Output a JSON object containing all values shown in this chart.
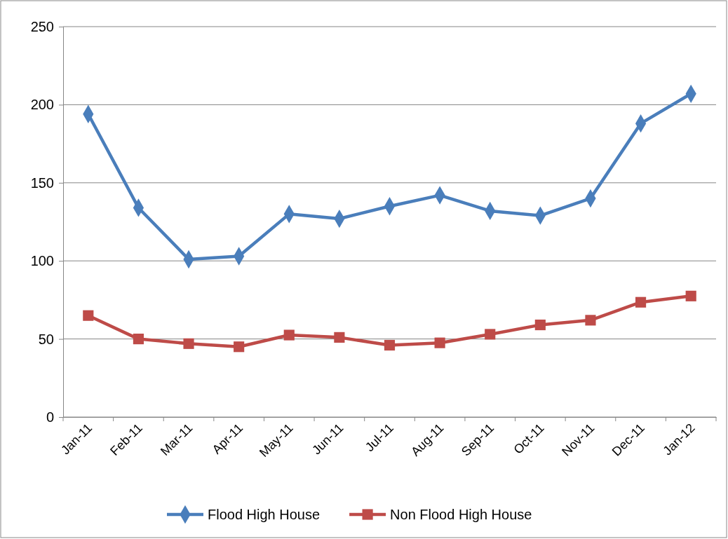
{
  "chart_data": {
    "type": "line",
    "categories": [
      "Jan-11",
      "Feb-11",
      "Mar-11",
      "Apr-11",
      "May-11",
      "Jun-11",
      "Jul-11",
      "Aug-11",
      "Sep-11",
      "Oct-11",
      "Nov-11",
      "Dec-11",
      "Jan-12"
    ],
    "ylim": [
      0,
      250
    ],
    "yticks": [
      0,
      50,
      100,
      150,
      200,
      250
    ],
    "grid": "y",
    "legend": "bottom",
    "line_style": "solid",
    "series": [
      {
        "name": "Flood High House",
        "color": "#4a7ebb",
        "marker": "diamond",
        "values": [
          194,
          134,
          101,
          103,
          130,
          127,
          135,
          142,
          132,
          129,
          140,
          188,
          207
        ]
      },
      {
        "name": "Non Flood High House",
        "color": "#be4b48",
        "marker": "square",
        "values": [
          65,
          50,
          47,
          45,
          52.5,
          51,
          46,
          47.5,
          53,
          59,
          62,
          73.5,
          77.5
        ]
      }
    ]
  }
}
